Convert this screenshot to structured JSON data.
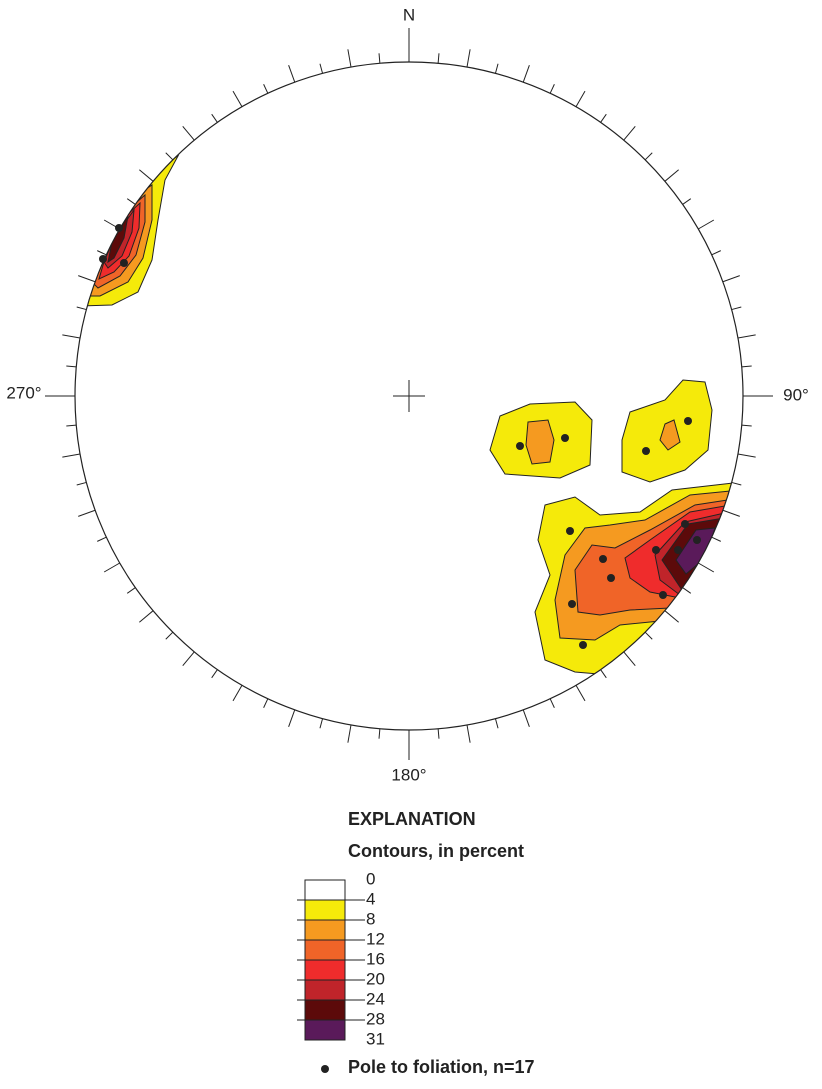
{
  "compass": {
    "north": "N",
    "east": "90°",
    "south": "180°",
    "west": "270°"
  },
  "legend": {
    "title": "EXPLANATION",
    "subtitle": "Contours, in percent",
    "levels": [
      "0",
      "4",
      "8",
      "12",
      "16",
      "20",
      "24",
      "28",
      "31"
    ],
    "point_label": "Pole to foliation, n=17"
  }
}
